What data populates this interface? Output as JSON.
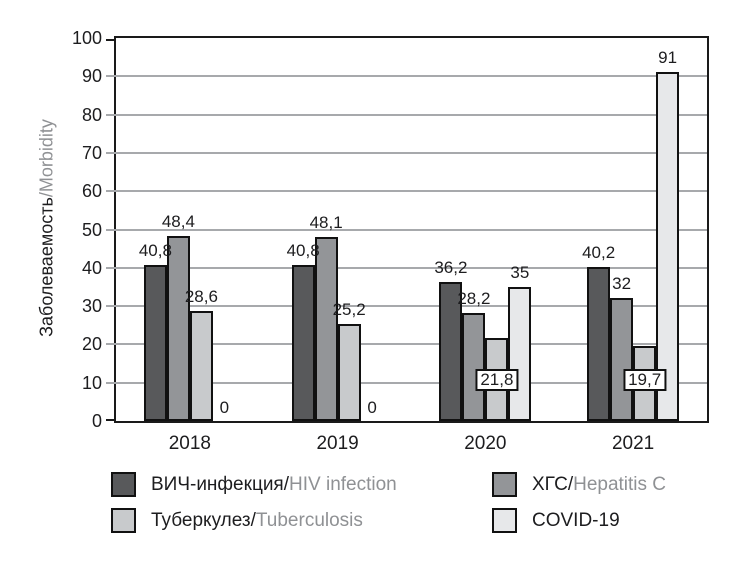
{
  "figure": {
    "background": "#ffffff"
  },
  "y_axis": {
    "title_ru": "Заболеваемость",
    "title_en": "/Morbidity",
    "tick_labels": [
      "0",
      "10",
      "20",
      "30",
      "40",
      "50",
      "60",
      "70",
      "80",
      "90",
      "100"
    ]
  },
  "x_axis": {
    "tick_labels": [
      "2018",
      "2019",
      "2020",
      "2021"
    ]
  },
  "chart_data": {
    "type": "bar",
    "title": "",
    "ylabel": "Заболеваемость/Morbidity",
    "xlabel": "",
    "ylim": [
      0,
      100
    ],
    "ytick_step": 10,
    "grid": true,
    "legend_position": "bottom",
    "categories": [
      "2018",
      "2019",
      "2020",
      "2021"
    ],
    "series": [
      {
        "name": "ВИЧ-инфекция/HIV infection",
        "color": "#58595B",
        "values": [
          40.8,
          40.8,
          36.2,
          40.2
        ],
        "value_labels": [
          "40,8",
          "40,8",
          "36,2",
          "40,2"
        ],
        "boxed_labels": [
          false,
          false,
          false,
          false
        ]
      },
      {
        "name": "ХГС/Hepatitis C",
        "color": "#939598",
        "values": [
          48.4,
          48.1,
          28.2,
          32
        ],
        "value_labels": [
          "48,4",
          "48,1",
          "28,2",
          "32"
        ],
        "boxed_labels": [
          false,
          false,
          false,
          false
        ]
      },
      {
        "name": "Туберкулез/Tuberculosis",
        "color": "#C8CACC",
        "values": [
          28.6,
          25.2,
          21.8,
          19.7
        ],
        "value_labels": [
          "28,6",
          "25,2",
          "21,8",
          "19,7"
        ],
        "boxed_labels": [
          false,
          false,
          true,
          true
        ]
      },
      {
        "name": "COVID-19",
        "color": "#E7E8EA",
        "values": [
          0,
          0,
          35,
          91
        ],
        "value_labels": [
          "0",
          "0",
          "35",
          "91"
        ],
        "boxed_labels": [
          false,
          false,
          false,
          false
        ]
      }
    ]
  },
  "legend": {
    "items": [
      {
        "label_ru": "ВИЧ-инфекция/",
        "label_en": "HIV infection",
        "color": "#58595B"
      },
      {
        "label_ru": "ХГС/",
        "label_en": "Hepatitis C",
        "color": "#939598"
      },
      {
        "label_ru": "Туберкулез/",
        "label_en": "Tuberculosis",
        "color": "#C8CACC"
      },
      {
        "label_ru": "COVID-19",
        "label_en": "",
        "color": "#E7E8EA"
      }
    ]
  },
  "colors": {
    "grid": "#A7A9AC",
    "axis": "#1A1A1A",
    "text": "#1D1D1F",
    "text_gray": "#8F9194"
  }
}
